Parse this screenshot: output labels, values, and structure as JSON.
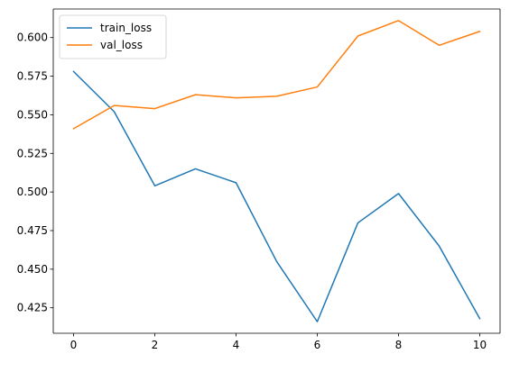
{
  "chart_data": {
    "type": "line",
    "title": "",
    "xlabel": "",
    "ylabel": "",
    "xlim": [
      -0.5,
      10.5
    ],
    "ylim": [
      0.4085,
      0.6185
    ],
    "x": [
      0,
      1,
      2,
      3,
      4,
      5,
      6,
      7,
      8,
      9,
      10
    ],
    "x_ticks": [
      0,
      2,
      4,
      6,
      8,
      10
    ],
    "y_ticks": [
      0.425,
      0.45,
      0.475,
      0.5,
      0.525,
      0.55,
      0.575,
      0.6
    ],
    "grid": false,
    "legend_position": "top-left",
    "series": [
      {
        "name": "train_loss",
        "color": "#1f77b4",
        "values": [
          0.578,
          0.552,
          0.504,
          0.515,
          0.506,
          0.455,
          0.416,
          0.48,
          0.499,
          0.465,
          0.418
        ]
      },
      {
        "name": "val_loss",
        "color": "#ff7f0e",
        "values": [
          0.541,
          0.556,
          0.554,
          0.563,
          0.561,
          0.562,
          0.568,
          0.601,
          0.611,
          0.595,
          0.604
        ]
      }
    ]
  }
}
